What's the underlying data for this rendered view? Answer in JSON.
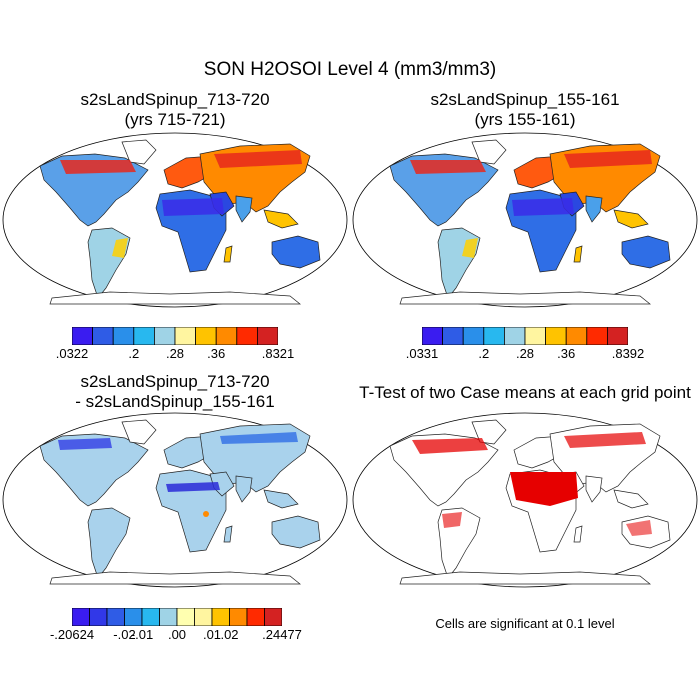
{
  "figure": {
    "title": "SON H2OSOI Level 4 (mm3/mm3)"
  },
  "panels": [
    {
      "id": "case1",
      "title_line1": "s2sLandSpinup_713-720",
      "title_line2": "(yrs 715-721)",
      "colorbar": {
        "colors": [
          "#3a1cf0",
          "#2f5ce6",
          "#2a8fea",
          "#28b8ef",
          "#9fd3e6",
          "#fff5a0",
          "#ffc300",
          "#ff8a00",
          "#ff2a00",
          "#d42222"
        ],
        "labels": [
          ".0322",
          ".2",
          ".28",
          ".36",
          ".8321"
        ]
      }
    },
    {
      "id": "case2",
      "title_line1": "s2sLandSpinup_155-161",
      "title_line2": "(yrs 155-161)",
      "colorbar": {
        "colors": [
          "#3a1cf0",
          "#2f5ce6",
          "#2a8fea",
          "#28b8ef",
          "#9fd3e6",
          "#fff5a0",
          "#ffc300",
          "#ff8a00",
          "#ff2a00",
          "#d42222"
        ],
        "labels": [
          ".0331",
          ".2",
          ".28",
          ".36",
          ".8392"
        ]
      }
    },
    {
      "id": "diff",
      "title_line1": "s2sLandSpinup_713-720",
      "title_line2": "- s2sLandSpinup_155-161",
      "colorbar": {
        "colors": [
          "#3a1cf0",
          "#3138e8",
          "#2f5ce6",
          "#2a8fea",
          "#28b8ef",
          "#9fd3e6",
          "#ffffb0",
          "#fff5a0",
          "#ffc300",
          "#ff8a00",
          "#ff2a00",
          "#d42222"
        ],
        "labels": [
          "-.20624",
          "-.02",
          "-.01",
          ".00",
          ".01",
          ".02",
          ".24477"
        ]
      }
    },
    {
      "id": "ttest",
      "title_line1": "T-Test of two Case means at each grid point",
      "note": "Cells are significant at 0.1 level"
    }
  ],
  "colors": {
    "land_case": "#4a8fe0",
    "land_diff": "#a9d2ec",
    "ttest_fill": "#e60000"
  }
}
